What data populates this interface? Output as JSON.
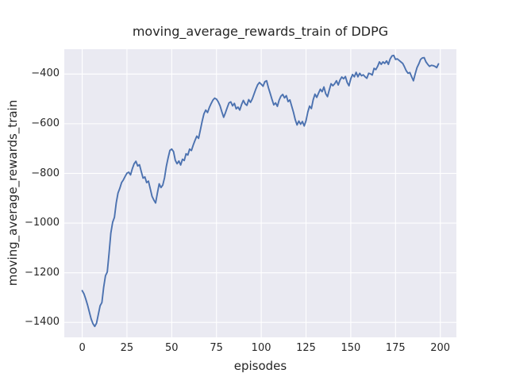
{
  "chart": {
    "title": "moving_average_rewards_train of DDPG",
    "xlabel": "episodes",
    "ylabel": "moving_average_rewards_train"
  },
  "style": {
    "line_color": "#4c72b0",
    "plot_bg": "#eaeaf2",
    "grid_color": "#ffffff",
    "text_color": "#262626",
    "figure_bg": "#ffffff"
  },
  "chart_data": {
    "type": "line",
    "title": "moving_average_rewards_train of DDPG",
    "xlabel": "episodes",
    "ylabel": "moving_average_rewards_train",
    "grid": true,
    "legend": false,
    "xlim": [
      -10,
      209
    ],
    "ylim": [
      -1460,
      -300
    ],
    "xticks": [
      0,
      25,
      50,
      75,
      100,
      125,
      150,
      175,
      200
    ],
    "xtick_labels": [
      "0",
      "25",
      "50",
      "75",
      "100",
      "125",
      "150",
      "175",
      "200"
    ],
    "yticks": [
      -400,
      -600,
      -800,
      -1000,
      -1200,
      -1400
    ],
    "ytick_labels": [
      "−400",
      "−600",
      "−800",
      "−1000",
      "−1200",
      "−1400"
    ],
    "series": [
      {
        "name": "moving_average_rewards_train",
        "x_start": 0,
        "x_step": 1,
        "values": [
          -1272,
          -1285,
          -1306,
          -1330,
          -1358,
          -1386,
          -1405,
          -1416,
          -1403,
          -1368,
          -1333,
          -1320,
          -1258,
          -1212,
          -1197,
          -1122,
          -1040,
          -997,
          -977,
          -919,
          -879,
          -860,
          -837,
          -826,
          -812,
          -799,
          -795,
          -806,
          -781,
          -761,
          -751,
          -770,
          -765,
          -793,
          -819,
          -814,
          -837,
          -831,
          -861,
          -892,
          -907,
          -919,
          -879,
          -842,
          -857,
          -847,
          -817,
          -771,
          -737,
          -707,
          -702,
          -712,
          -747,
          -761,
          -750,
          -766,
          -743,
          -748,
          -721,
          -726,
          -702,
          -708,
          -686,
          -667,
          -650,
          -659,
          -625,
          -590,
          -560,
          -545,
          -555,
          -535,
          -519,
          -505,
          -497,
          -501,
          -512,
          -528,
          -552,
          -574,
          -556,
          -535,
          -516,
          -512,
          -528,
          -518,
          -540,
          -533,
          -545,
          -523,
          -506,
          -520,
          -526,
          -503,
          -514,
          -500,
          -480,
          -460,
          -443,
          -434,
          -441,
          -449,
          -431,
          -427,
          -455,
          -478,
          -502,
          -524,
          -516,
          -530,
          -505,
          -489,
          -482,
          -496,
          -487,
          -511,
          -504,
          -529,
          -554,
          -584,
          -605,
          -589,
          -602,
          -591,
          -609,
          -588,
          -553,
          -529,
          -539,
          -504,
          -481,
          -494,
          -477,
          -461,
          -471,
          -452,
          -479,
          -491,
          -464,
          -439,
          -447,
          -439,
          -427,
          -444,
          -424,
          -412,
          -419,
          -410,
          -434,
          -447,
          -419,
          -402,
          -411,
          -393,
          -411,
          -397,
          -407,
          -403,
          -411,
          -417,
          -397,
          -399,
          -404,
          -377,
          -382,
          -369,
          -351,
          -361,
          -351,
          -357,
          -347,
          -361,
          -339,
          -327,
          -325,
          -341,
          -339,
          -345,
          -351,
          -357,
          -371,
          -387,
          -397,
          -394,
          -411,
          -427,
          -399,
          -374,
          -359,
          -341,
          -335,
          -334,
          -351,
          -361,
          -369,
          -365,
          -366,
          -369,
          -374,
          -359
        ]
      }
    ]
  }
}
